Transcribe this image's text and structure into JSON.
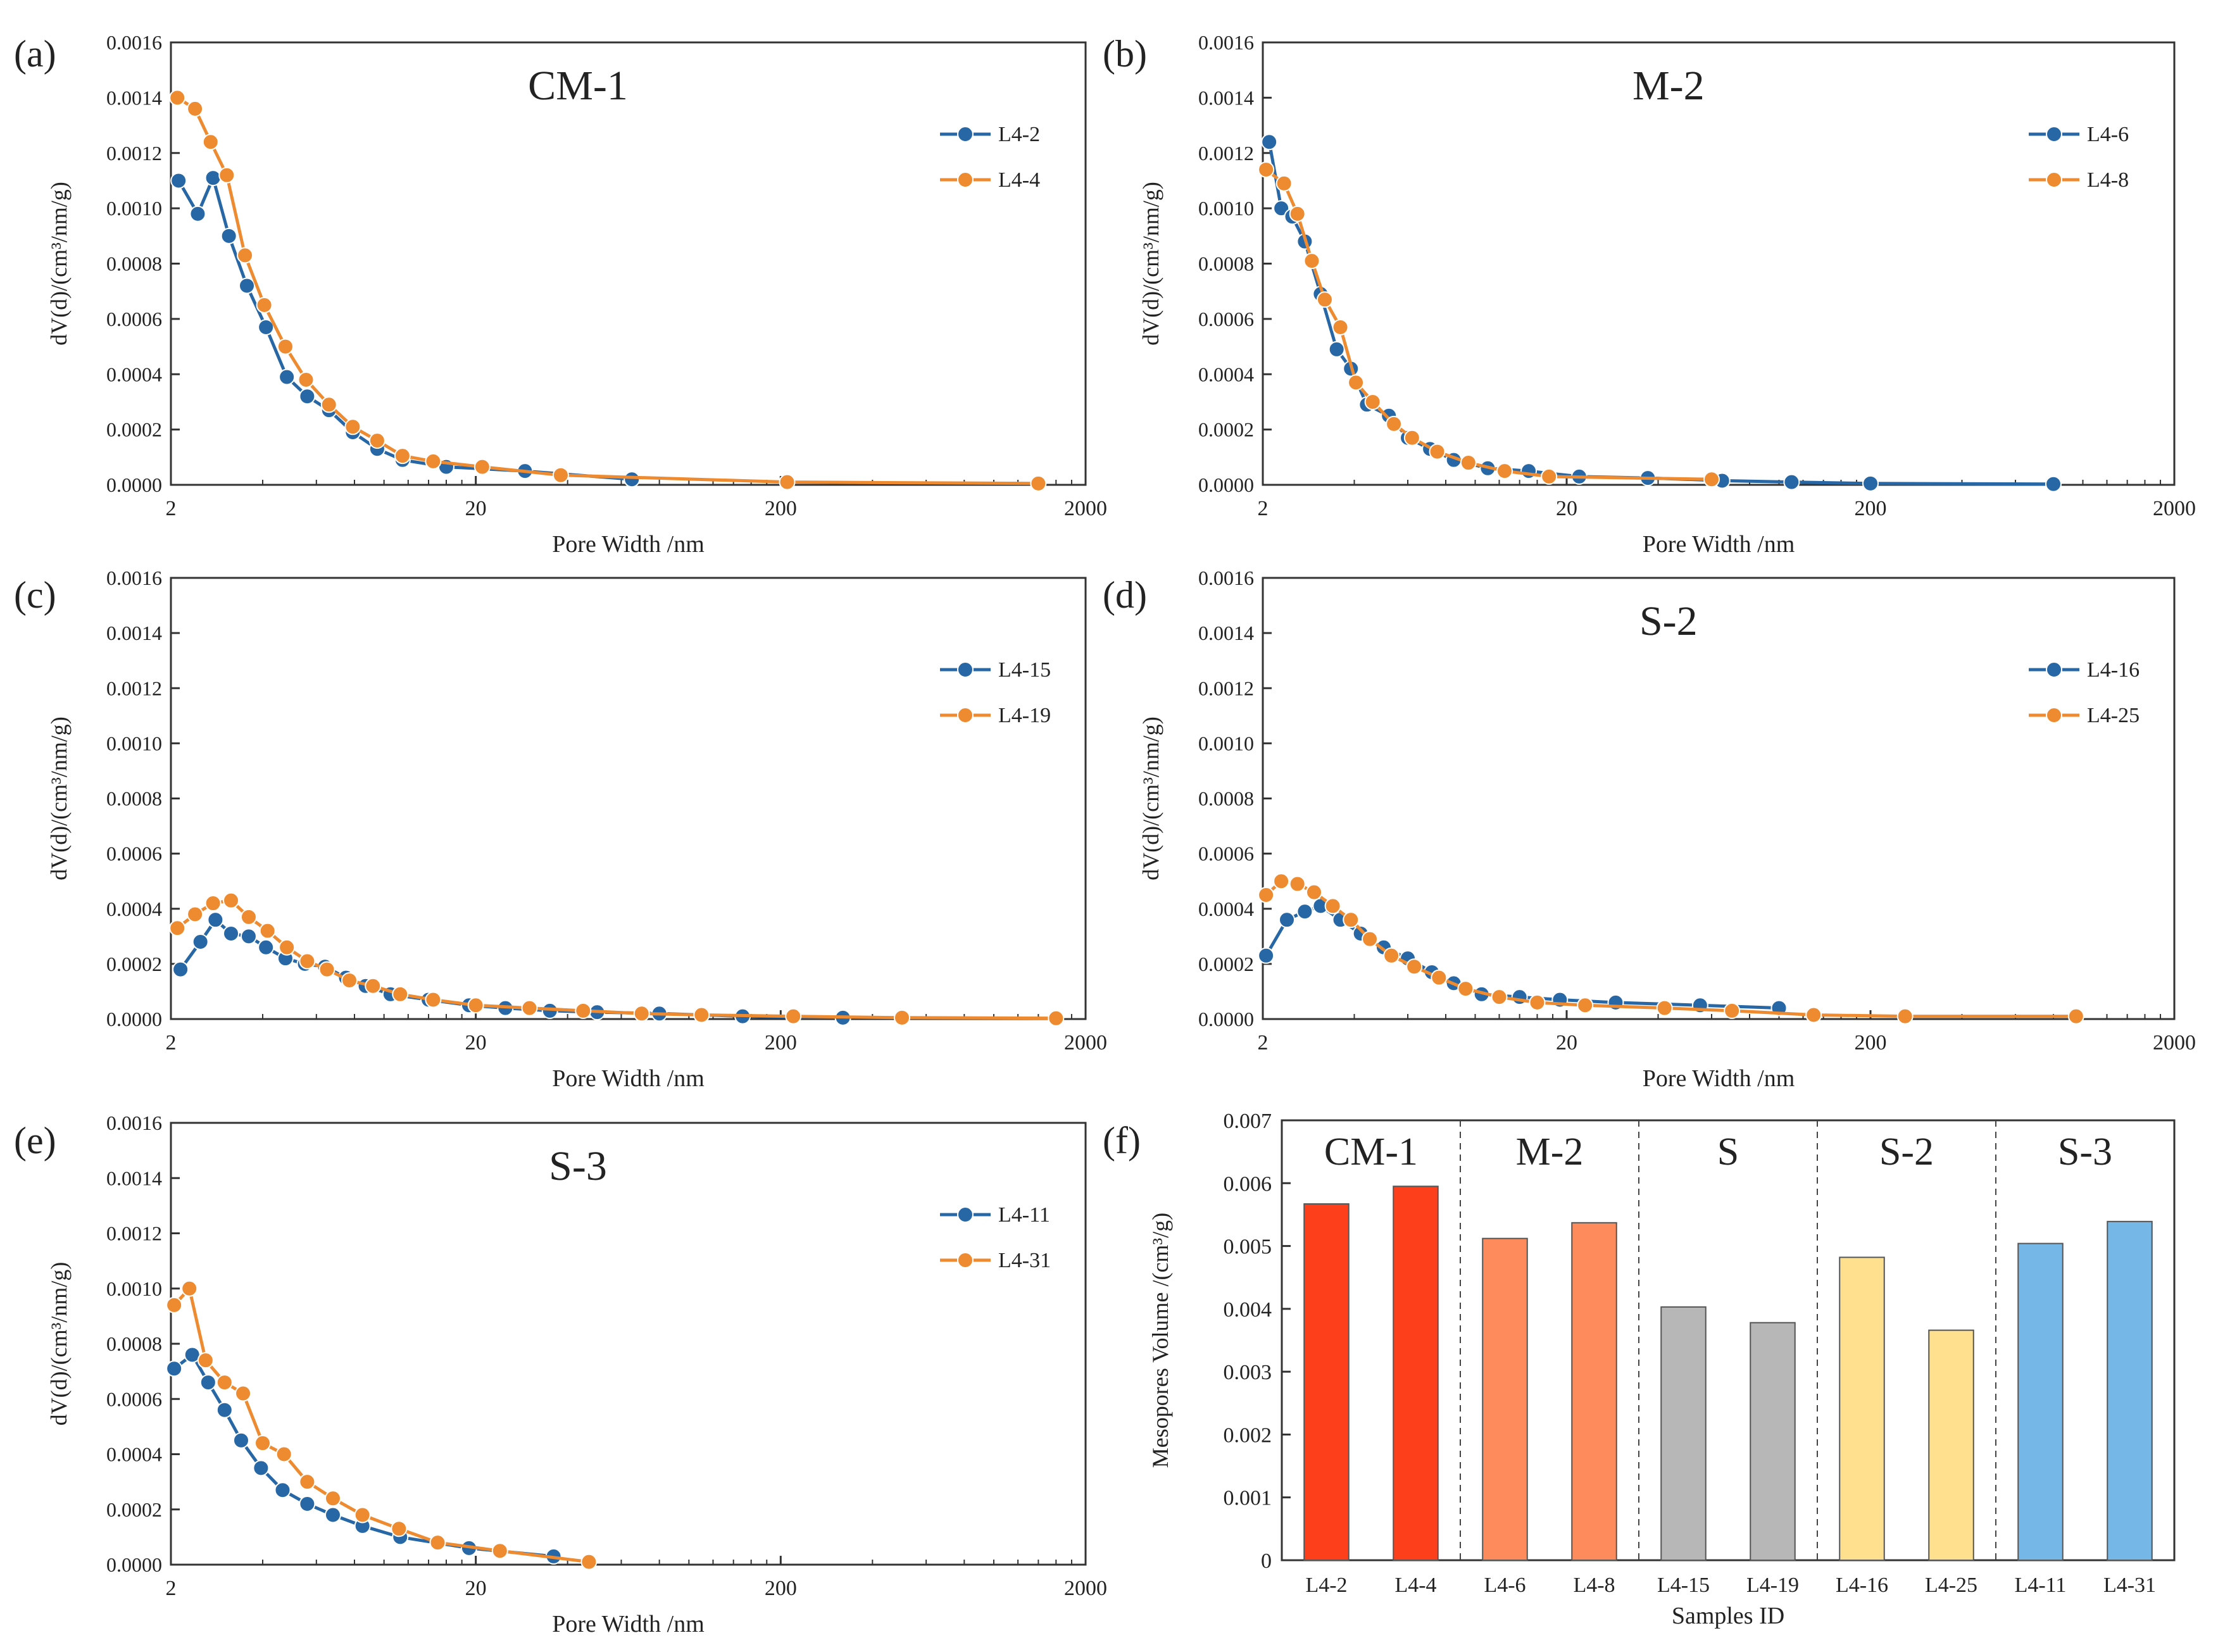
{
  "figure": {
    "panel_tags": [
      "(a)",
      "(b)",
      "(c)",
      "(d)",
      "(e)",
      "(f)"
    ]
  },
  "colors": {
    "blue": "#2767a6",
    "orange": "#ee8a2f",
    "cm1": "#fe3f1c",
    "m2": "#fe8b5b",
    "s": "#b7b7b7",
    "s2": "#ffe08e",
    "s3": "#75b7e6"
  },
  "chart_data": [
    {
      "type": "line",
      "panel": "(a)",
      "title": "CM-1",
      "xlabel": "Pore Width /nm",
      "ylabel": "dV(d)/(cm³/nm/g)",
      "xscale": "log",
      "xlim": [
        2,
        2000
      ],
      "ylim": [
        0,
        0.0016
      ],
      "xticks": [
        "2",
        "20",
        "200",
        "2000"
      ],
      "yticks": [
        "0.0000",
        "0.0002",
        "0.0004",
        "0.0006",
        "0.0008",
        "0.0010",
        "0.0012",
        "0.0014",
        "0.0016"
      ],
      "legend": "top-right",
      "series": [
        {
          "name": "L4-2",
          "x": [
            2.12,
            2.45,
            2.75,
            3.1,
            3.55,
            4.1,
            4.8,
            5.6,
            6.6,
            7.9,
            9.5,
            11.5,
            16,
            29,
            65
          ],
          "y": [
            0.0011,
            0.00098,
            0.00111,
            0.0009,
            0.00072,
            0.00057,
            0.00039,
            0.00032,
            0.00027,
            0.00019,
            0.00013,
            9e-05,
            6.5e-05,
            5e-05,
            2e-05
          ]
        },
        {
          "name": "L4-4",
          "x": [
            2.1,
            2.4,
            2.7,
            3.05,
            3.5,
            4.05,
            4.75,
            5.55,
            6.6,
            7.9,
            9.5,
            11.5,
            14.5,
            21,
            38,
            210,
            1400
          ],
          "y": [
            0.0014,
            0.00136,
            0.00124,
            0.00112,
            0.00083,
            0.00065,
            0.0005,
            0.00038,
            0.00029,
            0.00021,
            0.00016,
            0.000105,
            8.5e-05,
            6.5e-05,
            3.5e-05,
            1e-05,
            5e-06
          ]
        }
      ]
    },
    {
      "type": "line",
      "panel": "(b)",
      "title": "M-2",
      "xlabel": "Pore Width /nm",
      "ylabel": "dV(d)/(cm³/nm/g)",
      "xscale": "log",
      "xlim": [
        2,
        2000
      ],
      "ylim": [
        0,
        0.0016
      ],
      "xticks": [
        "2",
        "20",
        "200",
        "2000"
      ],
      "yticks": [
        "0.0000",
        "0.0002",
        "0.0004",
        "0.0006",
        "0.0008",
        "0.0010",
        "0.0012",
        "0.0014",
        "0.0016"
      ],
      "legend": "top-right",
      "series": [
        {
          "name": "L4-6",
          "x": [
            2.1,
            2.3,
            2.5,
            2.75,
            3.1,
            3.5,
            3.9,
            4.4,
            5.2,
            6.0,
            7.1,
            8.5,
            11,
            15,
            22,
            37,
            65,
            110,
            200,
            800
          ],
          "y": [
            0.00124,
            0.001,
            0.00097,
            0.00088,
            0.00069,
            0.00049,
            0.00042,
            0.00029,
            0.00025,
            0.00017,
            0.00013,
            9e-05,
            6e-05,
            5e-05,
            3e-05,
            2.5e-05,
            1.5e-05,
            1e-05,
            5e-06,
            3e-06
          ]
        },
        {
          "name": "L4-8",
          "x": [
            2.05,
            2.35,
            2.6,
            2.9,
            3.2,
            3.6,
            4.05,
            4.6,
            5.4,
            6.2,
            7.5,
            9.5,
            12.5,
            17.5,
            60
          ],
          "y": [
            0.00114,
            0.00109,
            0.00098,
            0.00081,
            0.00067,
            0.00057,
            0.00037,
            0.0003,
            0.00022,
            0.00017,
            0.00012,
            8e-05,
            5e-05,
            3e-05,
            2e-05
          ]
        }
      ]
    },
    {
      "type": "line",
      "panel": "(c)",
      "title": "",
      "xlabel": "Pore Width /nm",
      "ylabel": "dV(d)/(cm³/nm/g)",
      "xscale": "log",
      "xlim": [
        2,
        2000
      ],
      "ylim": [
        0,
        0.0016
      ],
      "xticks": [
        "2",
        "20",
        "200",
        "2000"
      ],
      "yticks": [
        "0.0000",
        "0.0002",
        "0.0004",
        "0.0006",
        "0.0008",
        "0.0010",
        "0.0012",
        "0.0014",
        "0.0016"
      ],
      "legend": "top-right",
      "series": [
        {
          "name": "L4-15",
          "x": [
            2.15,
            2.5,
            2.8,
            3.15,
            3.6,
            4.1,
            4.75,
            5.5,
            6.4,
            7.5,
            8.7,
            10.5,
            14,
            19,
            25,
            35,
            50,
            80,
            150,
            320
          ],
          "y": [
            0.00018,
            0.00028,
            0.00036,
            0.00031,
            0.0003,
            0.00026,
            0.00022,
            0.0002,
            0.00019,
            0.00015,
            0.00012,
            9e-05,
            7e-05,
            5e-05,
            4e-05,
            3e-05,
            2.5e-05,
            2e-05,
            1e-05,
            5e-06
          ]
        },
        {
          "name": "L4-19",
          "x": [
            2.1,
            2.4,
            2.75,
            3.15,
            3.6,
            4.15,
            4.8,
            5.6,
            6.5,
            7.7,
            9.2,
            11.3,
            14.5,
            20,
            30,
            45,
            70,
            110,
            220,
            500,
            1600
          ],
          "y": [
            0.00033,
            0.00038,
            0.00042,
            0.00043,
            0.00037,
            0.00032,
            0.00026,
            0.00021,
            0.00018,
            0.00014,
            0.00012,
            9e-05,
            7e-05,
            5e-05,
            4e-05,
            3e-05,
            2e-05,
            1.5e-05,
            1e-05,
            5e-06,
            3e-06
          ]
        }
      ]
    },
    {
      "type": "line",
      "panel": "(d)",
      "title": "S-2",
      "xlabel": "Pore Width /nm",
      "ylabel": "dV(d)/(cm³/nm/g)",
      "xscale": "log",
      "xlim": [
        2,
        2000
      ],
      "ylim": [
        0,
        0.0016
      ],
      "xticks": [
        "2",
        "20",
        "200",
        "2000"
      ],
      "yticks": [
        "0.0000",
        "0.0002",
        "0.0004",
        "0.0006",
        "0.0008",
        "0.0010",
        "0.0012",
        "0.0014",
        "0.0016"
      ],
      "legend": "top-right",
      "series": [
        {
          "name": "L4-16",
          "x": [
            2.05,
            2.4,
            2.75,
            3.1,
            3.6,
            4.2,
            5.0,
            6.0,
            7.2,
            8.5,
            10.5,
            14,
            19,
            29,
            55,
            100
          ],
          "y": [
            0.00023,
            0.00036,
            0.00039,
            0.00041,
            0.00036,
            0.00031,
            0.00026,
            0.00022,
            0.00017,
            0.00013,
            9e-05,
            8e-05,
            7e-05,
            6e-05,
            5e-05,
            4e-05
          ]
        },
        {
          "name": "L4-25",
          "x": [
            2.05,
            2.3,
            2.6,
            2.95,
            3.4,
            3.9,
            4.5,
            5.3,
            6.3,
            7.6,
            9.3,
            12,
            16,
            23,
            42,
            70,
            130,
            260,
            950
          ],
          "y": [
            0.00045,
            0.0005,
            0.00049,
            0.00046,
            0.00041,
            0.00036,
            0.00029,
            0.00023,
            0.00019,
            0.00015,
            0.00011,
            8e-05,
            6e-05,
            5e-05,
            4e-05,
            3e-05,
            1.5e-05,
            1e-05,
            1e-05
          ]
        }
      ]
    },
    {
      "type": "line",
      "panel": "(e)",
      "title": "S-3",
      "xlabel": "Pore Width /nm",
      "ylabel": "dV(d)/(cm³/nm/g)",
      "xscale": "log",
      "xlim": [
        2,
        2000
      ],
      "ylim": [
        0,
        0.0016
      ],
      "xticks": [
        "2",
        "20",
        "200",
        "2000"
      ],
      "yticks": [
        "0.0000",
        "0.0002",
        "0.0004",
        "0.0006",
        "0.0008",
        "0.0010",
        "0.0012",
        "0.0014",
        "0.0016"
      ],
      "legend": "top-right",
      "series": [
        {
          "name": "L4-11",
          "x": [
            2.05,
            2.35,
            2.65,
            3.0,
            3.4,
            3.95,
            4.65,
            5.6,
            6.8,
            8.5,
            11.3,
            19,
            36
          ],
          "y": [
            0.00071,
            0.00076,
            0.00066,
            0.00056,
            0.00045,
            0.00035,
            0.00027,
            0.00022,
            0.00018,
            0.00014,
            0.0001,
            6e-05,
            3e-05
          ]
        },
        {
          "name": "L4-31",
          "x": [
            2.05,
            2.3,
            2.6,
            3.0,
            3.45,
            4.0,
            4.7,
            5.6,
            6.8,
            8.5,
            11.2,
            15,
            24,
            47
          ],
          "y": [
            0.00094,
            0.001,
            0.00074,
            0.00066,
            0.00062,
            0.00044,
            0.0004,
            0.0003,
            0.00024,
            0.00018,
            0.00013,
            8e-05,
            5e-05,
            1e-05
          ]
        }
      ]
    },
    {
      "type": "bar",
      "panel": "(f)",
      "xlabel": "Samples ID",
      "ylabel": "Mesopores Volume /(cm³/g)",
      "ylim": [
        0,
        0.007
      ],
      "yticks": [
        "0",
        "0.001",
        "0.002",
        "0.003",
        "0.004",
        "0.005",
        "0.006",
        "0.007"
      ],
      "groups": [
        {
          "name": "CM-1",
          "color_key": "cm1",
          "categories": [
            "L4-2",
            "L4-4"
          ],
          "values": [
            0.00567,
            0.00595
          ]
        },
        {
          "name": "M-2",
          "color_key": "m2",
          "categories": [
            "L4-6",
            "L4-8"
          ],
          "values": [
            0.00512,
            0.00537
          ]
        },
        {
          "name": "S",
          "color_key": "s",
          "categories": [
            "L4-15",
            "L4-19"
          ],
          "values": [
            0.00403,
            0.00378
          ]
        },
        {
          "name": "S-2",
          "color_key": "s2",
          "categories": [
            "L4-16",
            "L4-25"
          ],
          "values": [
            0.00482,
            0.00366
          ]
        },
        {
          "name": "S-3",
          "color_key": "s3",
          "categories": [
            "L4-11",
            "L4-31"
          ],
          "values": [
            0.00504,
            0.00539
          ]
        }
      ]
    }
  ]
}
